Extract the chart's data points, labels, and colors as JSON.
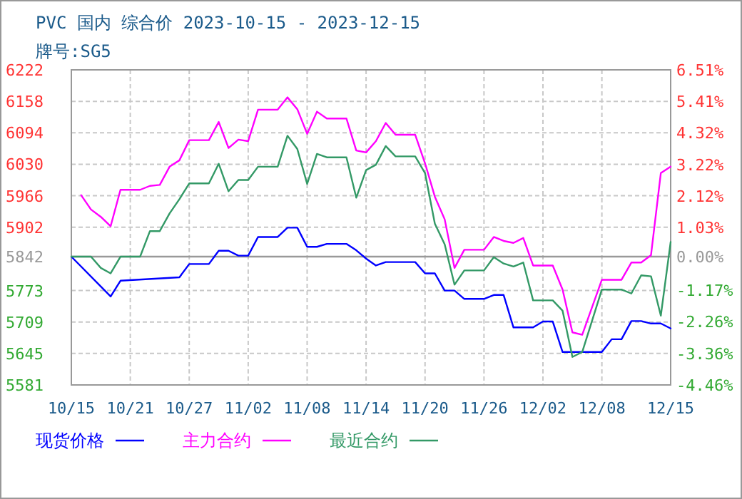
{
  "chart_data": {
    "type": "line",
    "title": "PVC 国内 综合价 2023-10-15 - 2023-12-15",
    "subtitle": "牌号:SG5",
    "xlim": [
      "2023-10-15",
      "2023-12-15"
    ],
    "xticks": [
      {
        "value": "2023-10-15",
        "label": "10/15"
      },
      {
        "value": "2023-10-21",
        "label": "10/21"
      },
      {
        "value": "2023-10-27",
        "label": "10/27"
      },
      {
        "value": "2023-11-02",
        "label": "11/02"
      },
      {
        "value": "2023-11-08",
        "label": "11/08"
      },
      {
        "value": "2023-11-14",
        "label": "11/14"
      },
      {
        "value": "2023-11-20",
        "label": "11/20"
      },
      {
        "value": "2023-11-26",
        "label": "11/26"
      },
      {
        "value": "2023-12-02",
        "label": "12/02"
      },
      {
        "value": "2023-12-08",
        "label": "12/08"
      },
      {
        "value": "2023-12-15",
        "label": "12/15"
      }
    ],
    "ylim": [
      5581,
      6222
    ],
    "yticks": [
      5581,
      5645,
      5709,
      5773,
      5842,
      5902,
      5966,
      6030,
      6094,
      6158,
      6222
    ],
    "y2lim": [
      -4.46,
      6.51
    ],
    "y2ticks": [
      {
        "value": -4.46,
        "label": "-4.46%"
      },
      {
        "value": -3.36,
        "label": "-3.36%"
      },
      {
        "value": -2.26,
        "label": "-2.26%"
      },
      {
        "value": -1.17,
        "label": "-1.17%"
      },
      {
        "value": 0,
        "label": "0.00%"
      },
      {
        "value": 1.03,
        "label": "1.03%"
      },
      {
        "value": 2.12,
        "label": "2.12%"
      },
      {
        "value": 3.22,
        "label": "3.22%"
      },
      {
        "value": 4.32,
        "label": "4.32%"
      },
      {
        "value": 5.41,
        "label": "5.41%"
      },
      {
        "value": 6.51,
        "label": "6.51%"
      }
    ],
    "ref_lines": [
      {
        "axis": "y",
        "value": 5842,
        "color": "#999999"
      }
    ],
    "grid": true,
    "legend": "bottom",
    "series": [
      {
        "name": "现货价格",
        "color": "#0000ff",
        "x": [
          "2023-10-15",
          "2023-10-19",
          "2023-10-20",
          "2023-10-26",
          "2023-10-27",
          "2023-10-29",
          "2023-10-30",
          "2023-10-31",
          "2023-11-01",
          "2023-11-02",
          "2023-11-03",
          "2023-11-05",
          "2023-11-06",
          "2023-11-07",
          "2023-11-08",
          "2023-11-09",
          "2023-11-10",
          "2023-11-12",
          "2023-11-13",
          "2023-11-14",
          "2023-11-15",
          "2023-11-16",
          "2023-11-19",
          "2023-11-20",
          "2023-11-21",
          "2023-11-22",
          "2023-11-23",
          "2023-11-24",
          "2023-11-26",
          "2023-11-27",
          "2023-11-28",
          "2023-11-29",
          "2023-12-01",
          "2023-12-02",
          "2023-12-03",
          "2023-12-04",
          "2023-12-08",
          "2023-12-09",
          "2023-12-10",
          "2023-12-11",
          "2023-12-12",
          "2023-12-13",
          "2023-12-14",
          "2023-12-15"
        ],
        "values": [
          5842,
          5761,
          5793,
          5800,
          5827,
          5827,
          5854,
          5854,
          5844,
          5844,
          5882,
          5882,
          5901,
          5901,
          5862,
          5862,
          5868,
          5868,
          5855,
          5838,
          5824,
          5831,
          5831,
          5808,
          5808,
          5773,
          5773,
          5756,
          5756,
          5764,
          5764,
          5698,
          5698,
          5710,
          5710,
          5648,
          5648,
          5674,
          5674,
          5711,
          5711,
          5706,
          5706,
          5696
        ]
      },
      {
        "name": "主力合约",
        "color": "#ff00ff",
        "x": [
          "2023-10-16",
          "2023-10-17",
          "2023-10-18",
          "2023-10-19",
          "2023-10-20",
          "2023-10-22",
          "2023-10-23",
          "2023-10-24",
          "2023-10-25",
          "2023-10-26",
          "2023-10-27",
          "2023-10-29",
          "2023-10-30",
          "2023-10-31",
          "2023-11-01",
          "2023-11-02",
          "2023-11-03",
          "2023-11-05",
          "2023-11-06",
          "2023-11-07",
          "2023-11-08",
          "2023-11-09",
          "2023-11-10",
          "2023-11-12",
          "2023-11-13",
          "2023-11-14",
          "2023-11-15",
          "2023-11-16",
          "2023-11-17",
          "2023-11-19",
          "2023-11-20",
          "2023-11-21",
          "2023-11-22",
          "2023-11-23",
          "2023-11-24",
          "2023-11-26",
          "2023-11-27",
          "2023-11-28",
          "2023-11-29",
          "2023-11-30",
          "2023-12-01",
          "2023-12-03",
          "2023-12-04",
          "2023-12-05",
          "2023-12-06",
          "2023-12-08",
          "2023-12-10",
          "2023-12-11",
          "2023-12-12",
          "2023-12-13",
          "2023-12-14",
          "2023-12-15"
        ],
        "values": [
          5967,
          5938,
          5923,
          5904,
          5978,
          5978,
          5986,
          5988,
          6025,
          6038,
          6079,
          6079,
          6116,
          6063,
          6080,
          6077,
          6141,
          6141,
          6166,
          6142,
          6092,
          6137,
          6123,
          6123,
          6058,
          6054,
          6077,
          6114,
          6090,
          6090,
          6032,
          5964,
          5918,
          5819,
          5856,
          5856,
          5882,
          5874,
          5870,
          5880,
          5824,
          5824,
          5775,
          5688,
          5683,
          5795,
          5795,
          5830,
          5830,
          5845,
          6012,
          6025
        ]
      },
      {
        "name": "最近合约",
        "color": "#339966",
        "x": [
          "2023-10-15",
          "2023-10-17",
          "2023-10-18",
          "2023-10-19",
          "2023-10-20",
          "2023-10-22",
          "2023-10-23",
          "2023-10-24",
          "2023-10-25",
          "2023-10-26",
          "2023-10-27",
          "2023-10-29",
          "2023-10-30",
          "2023-10-31",
          "2023-11-01",
          "2023-11-02",
          "2023-11-03",
          "2023-11-05",
          "2023-11-06",
          "2023-11-07",
          "2023-11-08",
          "2023-11-09",
          "2023-11-10",
          "2023-11-12",
          "2023-11-13",
          "2023-11-14",
          "2023-11-15",
          "2023-11-16",
          "2023-11-17",
          "2023-11-19",
          "2023-11-20",
          "2023-11-21",
          "2023-11-22",
          "2023-11-23",
          "2023-11-24",
          "2023-11-26",
          "2023-11-27",
          "2023-11-28",
          "2023-11-29",
          "2023-11-30",
          "2023-12-01",
          "2023-12-03",
          "2023-12-04",
          "2023-12-05",
          "2023-12-06",
          "2023-12-08",
          "2023-12-10",
          "2023-12-11",
          "2023-12-12",
          "2023-12-13",
          "2023-12-14",
          "2023-12-15"
        ],
        "values": [
          5842,
          5842,
          5819,
          5808,
          5842,
          5842,
          5894,
          5894,
          5930,
          5959,
          5991,
          5991,
          6031,
          5975,
          5998,
          5998,
          6025,
          6025,
          6088,
          6061,
          5990,
          6051,
          6044,
          6044,
          5962,
          6018,
          6029,
          6067,
          6046,
          6046,
          6012,
          5909,
          5867,
          5785,
          5814,
          5814,
          5841,
          5828,
          5822,
          5830,
          5753,
          5753,
          5732,
          5638,
          5648,
          5775,
          5775,
          5767,
          5804,
          5802,
          5722,
          5872
        ]
      }
    ]
  }
}
